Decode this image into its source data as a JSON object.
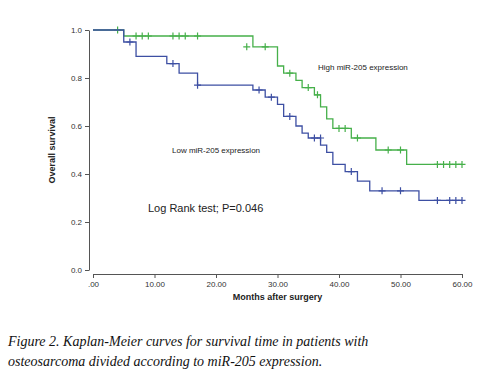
{
  "chart_data": {
    "type": "line",
    "line_style": "step",
    "marker": "plus",
    "x_label": "Months after surgery",
    "y_label": "Overall survival",
    "annotation": "Log Rank test; P=0.046",
    "caption": [
      "Figure 2. Kaplan-Meier curves for survival time in patients with",
      "osteosarcoma divided according to miR-205 expression."
    ],
    "xlim": [
      0,
      60
    ],
    "xticks": [
      {
        "value": 0,
        "label": ".00"
      },
      {
        "value": 10,
        "label": "10.00"
      },
      {
        "value": 20,
        "label": "20.00"
      },
      {
        "value": 30,
        "label": "30.00"
      },
      {
        "value": 40,
        "label": "40.00"
      },
      {
        "value": 50,
        "label": "50.00"
      },
      {
        "value": 60,
        "label": "60.00"
      }
    ],
    "ylim": [
      0,
      1
    ],
    "yticks": [
      {
        "value": 0,
        "label": "0.0"
      },
      {
        "value": 0.2,
        "label": "0.2"
      },
      {
        "value": 0.4,
        "label": "0.4"
      },
      {
        "value": 0.6,
        "label": "0.6"
      },
      {
        "value": 0.8,
        "label": "0.8"
      },
      {
        "value": 1,
        "label": "1.0"
      }
    ],
    "series": [
      {
        "name": "High miR-205 expression",
        "color": "#46b04a",
        "x": [
          0,
          5,
          26,
          30,
          31,
          33,
          34,
          36,
          37,
          38,
          39,
          42,
          46,
          51,
          60
        ],
        "values": [
          1.0,
          0.975,
          0.93,
          0.85,
          0.82,
          0.79,
          0.76,
          0.73,
          0.68,
          0.63,
          0.59,
          0.55,
          0.5,
          0.44,
          0.44
        ],
        "censor_x": [
          4,
          7,
          8,
          9,
          13,
          14,
          15,
          17,
          25,
          28,
          32,
          35,
          36.5,
          40,
          41,
          43,
          48,
          50,
          56,
          57,
          58,
          59,
          60
        ],
        "censor_y": [
          1.0,
          0.975,
          0.975,
          0.975,
          0.975,
          0.975,
          0.975,
          0.975,
          0.93,
          0.93,
          0.82,
          0.76,
          0.73,
          0.59,
          0.59,
          0.55,
          0.5,
          0.5,
          0.44,
          0.44,
          0.44,
          0.44,
          0.44
        ]
      },
      {
        "name": "Low miR-205 expression",
        "color": "#3d4fa3",
        "x": [
          0,
          5,
          7,
          12,
          14,
          17,
          26,
          28,
          30,
          31,
          33,
          34,
          35,
          37,
          38,
          39,
          41,
          43,
          45,
          53,
          60
        ],
        "values": [
          1.0,
          0.95,
          0.89,
          0.86,
          0.82,
          0.77,
          0.75,
          0.72,
          0.69,
          0.64,
          0.6,
          0.57,
          0.55,
          0.52,
          0.49,
          0.44,
          0.41,
          0.37,
          0.33,
          0.29,
          0.29
        ],
        "censor_x": [
          6,
          13,
          17,
          27,
          29,
          32,
          36,
          37,
          42,
          47,
          50,
          56,
          58,
          59,
          60
        ],
        "censor_y": [
          0.95,
          0.86,
          0.77,
          0.75,
          0.72,
          0.64,
          0.55,
          0.55,
          0.41,
          0.33,
          0.33,
          0.29,
          0.29,
          0.29,
          0.29
        ]
      }
    ]
  }
}
